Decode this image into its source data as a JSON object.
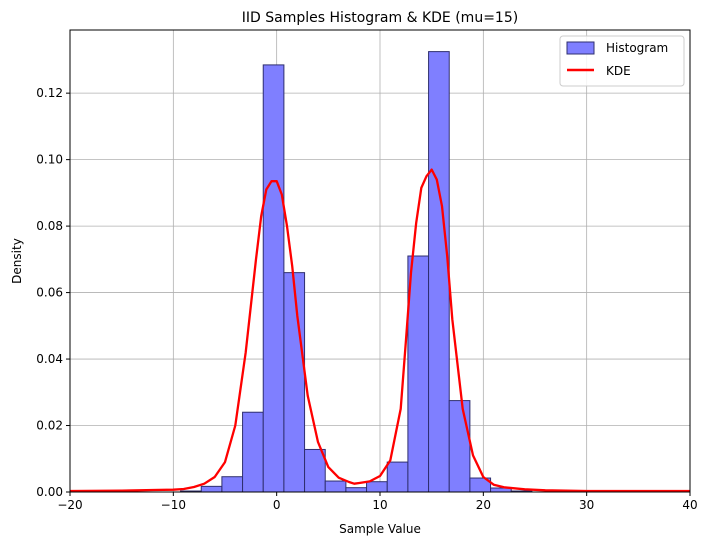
{
  "chart_data": {
    "type": "bar",
    "title": "IID Samples Histogram & KDE (mu=15)",
    "xlabel": "Sample Value",
    "ylabel": "Density",
    "xlim": [
      -20,
      40
    ],
    "ylim": [
      0,
      0.139
    ],
    "xticks": [
      -20,
      -10,
      0,
      10,
      20,
      30,
      40
    ],
    "xtick_labels": [
      "−20",
      "−10",
      "0",
      "10",
      "20",
      "30",
      "40"
    ],
    "yticks": [
      0.0,
      0.02,
      0.04,
      0.06,
      0.08,
      0.1,
      0.12
    ],
    "ytick_labels": [
      "0.00",
      "0.02",
      "0.04",
      "0.06",
      "0.08",
      "0.10",
      "0.12"
    ],
    "grid": true,
    "legend_position": "top-right",
    "colors": {
      "histogram_fill": "#7f7fff",
      "histogram_edge": "#2f2f6f",
      "kde_line": "#ff0000",
      "grid": "#b0b0b0"
    },
    "histogram": {
      "name": "Histogram",
      "bin_width": 2.0,
      "bins": [
        {
          "left": -9.3,
          "density": 0.0003
        },
        {
          "left": -7.3,
          "density": 0.0017
        },
        {
          "left": -5.3,
          "density": 0.0046
        },
        {
          "left": -3.3,
          "density": 0.024
        },
        {
          "left": -1.3,
          "density": 0.1285
        },
        {
          "left": 0.7,
          "density": 0.066
        },
        {
          "left": 2.7,
          "density": 0.0128
        },
        {
          "left": 4.7,
          "density": 0.0033
        },
        {
          "left": 6.7,
          "density": 0.0013
        },
        {
          "left": 8.7,
          "density": 0.0031
        },
        {
          "left": 10.7,
          "density": 0.009
        },
        {
          "left": 12.7,
          "density": 0.071
        },
        {
          "left": 14.7,
          "density": 0.1325
        },
        {
          "left": 16.7,
          "density": 0.0275
        },
        {
          "left": 18.7,
          "density": 0.0042
        },
        {
          "left": 20.7,
          "density": 0.0012
        },
        {
          "left": 22.7,
          "density": 0.0003
        }
      ]
    },
    "kde": {
      "name": "KDE",
      "x": [
        -20,
        -15,
        -12,
        -10,
        -9,
        -8,
        -7,
        -6,
        -5,
        -4,
        -3,
        -2,
        -1.5,
        -1,
        -0.5,
        0,
        0.5,
        1,
        1.5,
        2,
        3,
        4,
        5,
        6,
        7,
        7.5,
        8,
        9,
        10,
        11,
        12,
        12.5,
        13,
        13.5,
        14,
        14.5,
        15,
        15.5,
        16,
        16.5,
        17,
        18,
        19,
        20,
        21,
        22,
        24,
        26,
        30,
        35,
        40
      ],
      "y": [
        0.0003,
        0.0004,
        0.0006,
        0.0007,
        0.0009,
        0.0015,
        0.0025,
        0.0045,
        0.009,
        0.02,
        0.042,
        0.07,
        0.083,
        0.091,
        0.0935,
        0.0935,
        0.0895,
        0.08,
        0.068,
        0.053,
        0.029,
        0.015,
        0.0075,
        0.0043,
        0.003,
        0.0025,
        0.0027,
        0.0032,
        0.0048,
        0.0095,
        0.025,
        0.045,
        0.066,
        0.081,
        0.0915,
        0.095,
        0.097,
        0.094,
        0.086,
        0.071,
        0.052,
        0.025,
        0.011,
        0.0045,
        0.0022,
        0.0014,
        0.0008,
        0.0005,
        0.0003,
        0.0003,
        0.0003
      ]
    }
  }
}
